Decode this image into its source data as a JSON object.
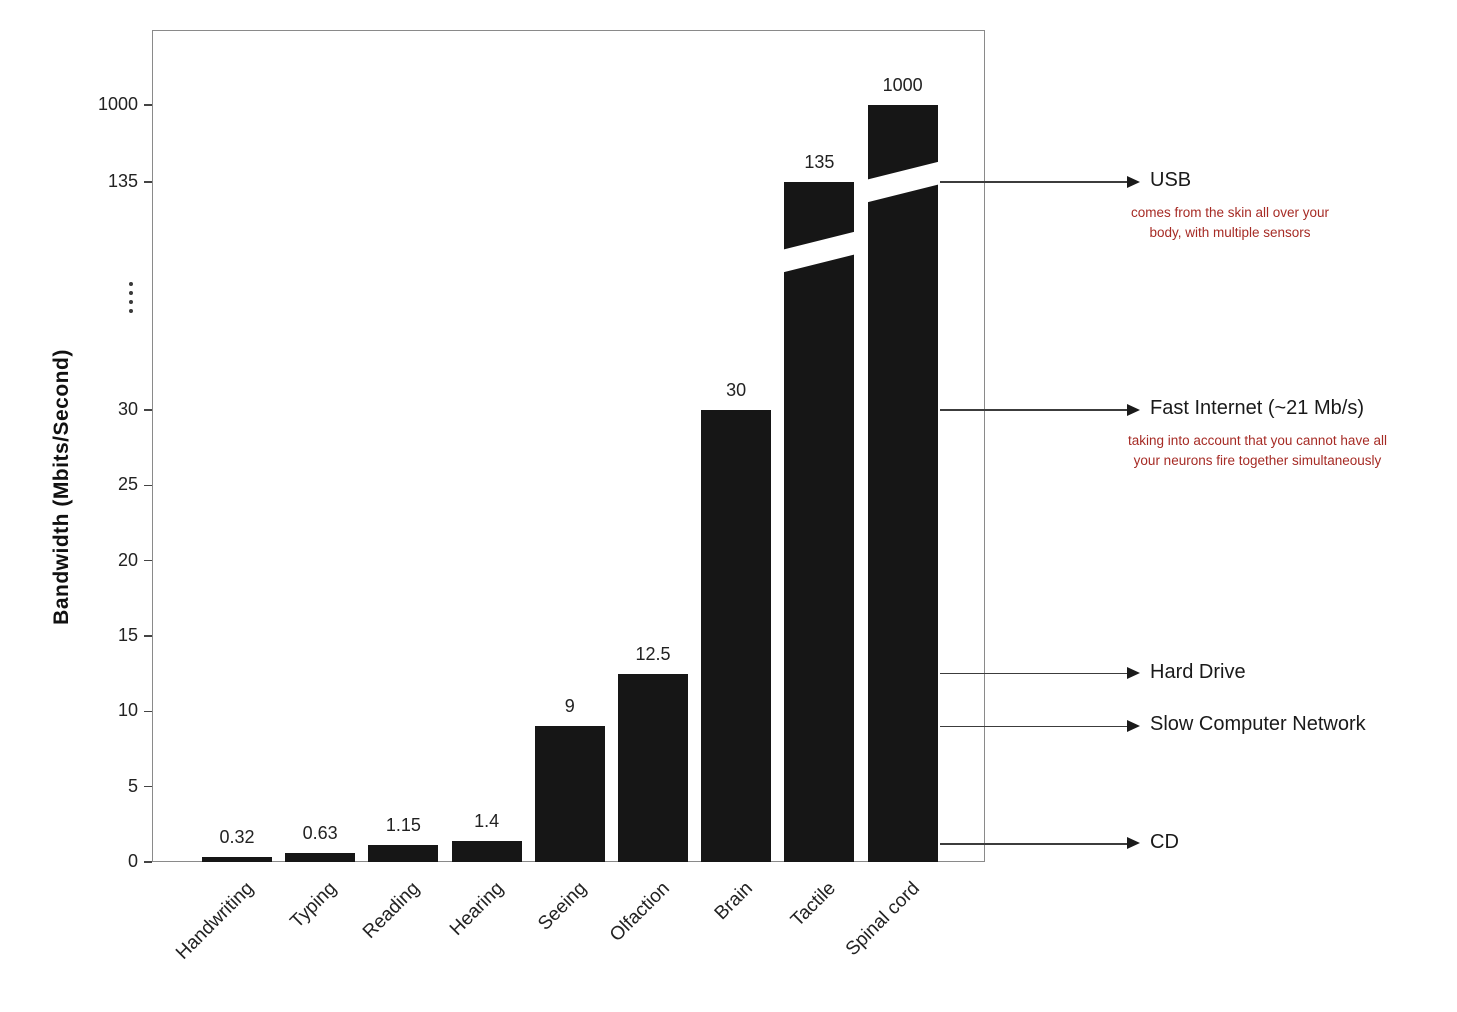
{
  "chart_data": {
    "type": "bar",
    "title": "",
    "ylabel": "Bandwidth (Mbits/Second)",
    "xlabel": "",
    "categories": [
      "Handwriting",
      "Typing",
      "Reading",
      "Hearing",
      "Seeing",
      "Olfaction",
      "Brain",
      "Tactile",
      "Spinal cord"
    ],
    "values": [
      0.32,
      0.63,
      1.15,
      1.4,
      9,
      12.5,
      30,
      135,
      1000
    ],
    "value_labels": [
      "0.32",
      "0.63",
      "1.15",
      "1.4",
      "9",
      "12.5",
      "30",
      "135",
      "1000"
    ],
    "bar_color": "#161616",
    "grid": false,
    "y_axis": {
      "linear_ticks": [
        0,
        5,
        10,
        15,
        20,
        25,
        30
      ],
      "break_ticks": [
        135,
        1000
      ],
      "has_break": true,
      "broken_bars": [
        "Tactile",
        "Spinal cord"
      ]
    },
    "annotations": [
      {
        "label": "USB",
        "level": 135,
        "note": "comes from the skin all over your\nbody, with multiple sensors"
      },
      {
        "label": "Fast Internet (~21 Mb/s)",
        "level": 30,
        "note": "taking into account that you cannot have all\nyour neurons fire together simultaneously"
      },
      {
        "label": "Hard Drive",
        "level": 12.5,
        "note": ""
      },
      {
        "label": "Slow Computer Network",
        "level": 9,
        "note": ""
      },
      {
        "label": "CD",
        "level": 1.2,
        "note": ""
      }
    ],
    "annotation_note_color": "#a62b25",
    "legend_position": "none"
  }
}
